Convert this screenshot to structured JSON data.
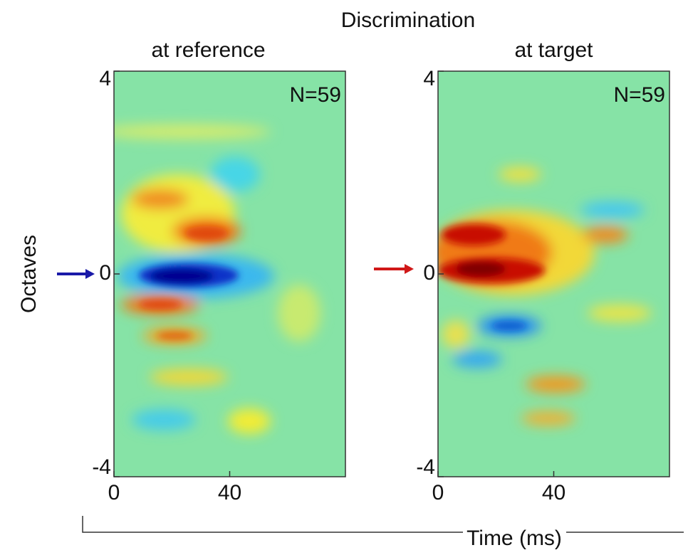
{
  "figure": {
    "title": "Discrimination",
    "ylabel": "Octaves",
    "xlabel": "Time (ms)"
  },
  "chart_data": [
    {
      "type": "heatmap",
      "title": "at reference",
      "annotation": "N=59",
      "xlim": [
        0,
        80
      ],
      "xticks": [
        0,
        40
      ],
      "ylim": [
        -4,
        4
      ],
      "yticks": [
        4,
        0,
        -4
      ]
    },
    {
      "type": "heatmap",
      "title": "at target",
      "annotation": "N=59",
      "xlim": [
        0,
        80
      ],
      "xticks": [
        0,
        40
      ],
      "ylim": [
        -4,
        4
      ],
      "yticks": [
        4,
        0,
        -4
      ]
    }
  ]
}
